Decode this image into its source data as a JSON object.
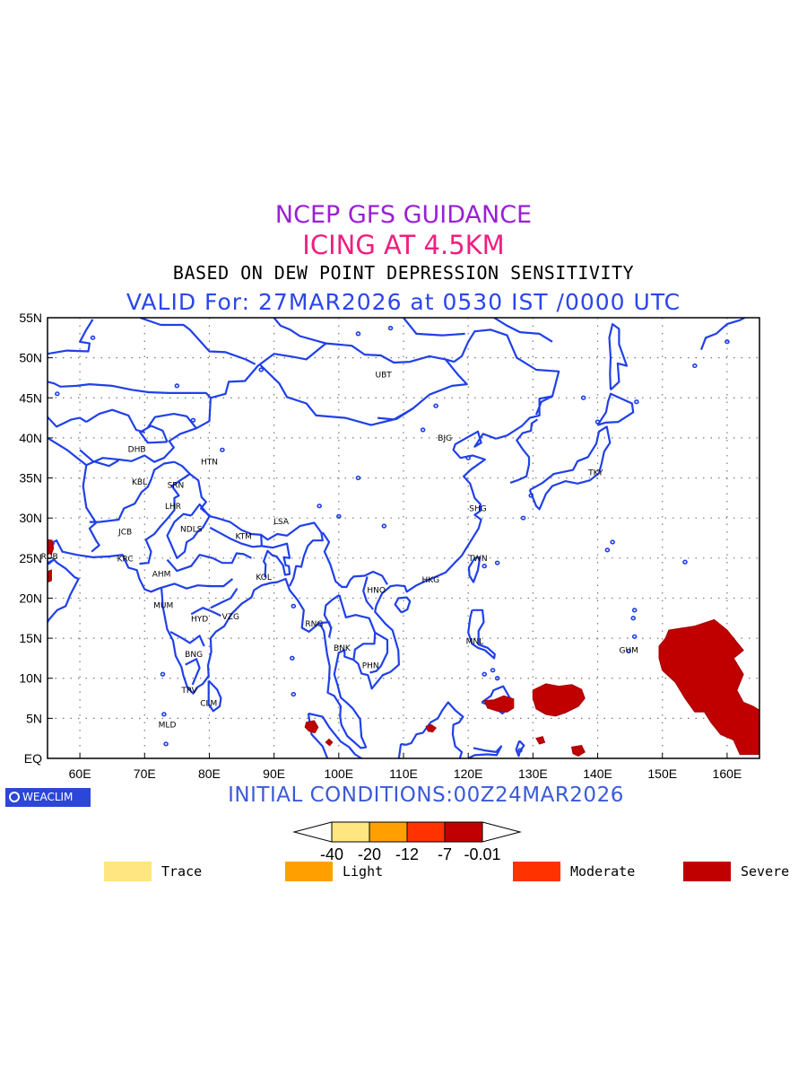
{
  "header": {
    "line1": "NCEP GFS GUIDANCE",
    "line2": "ICING AT 4.5KM",
    "line3": "BASED ON DEW POINT DEPRESSION SENSITIVITY",
    "line4": "VALID For: 27MAR2026 at 0530 IST /0000 UTC"
  },
  "colors": {
    "line1": "#9a1fd6",
    "line2": "#ee1f7f",
    "line3": "#000000",
    "line4": "#2b46e8",
    "coast": "#2040e8",
    "grid": "#777777",
    "initial": "#3a5ad8",
    "severe": "#c00000"
  },
  "map": {
    "lon_ticks": [
      "60E",
      "70E",
      "80E",
      "90E",
      "100E",
      "110E",
      "120E",
      "130E",
      "140E",
      "150E",
      "160E"
    ],
    "lat_ticks": [
      "EQ",
      "5N",
      "10N",
      "15N",
      "20N",
      "25N",
      "30N",
      "35N",
      "40N",
      "45N",
      "50N",
      "55N"
    ],
    "lon_range": [
      55,
      165
    ],
    "lat_range": [
      0,
      55
    ],
    "stations": [
      {
        "code": "UBT",
        "lon": 106.9,
        "lat": 47.9
      },
      {
        "code": "BJG",
        "lon": 116.4,
        "lat": 40.0
      },
      {
        "code": "DHB",
        "lon": 68.8,
        "lat": 38.6
      },
      {
        "code": "HTN",
        "lon": 80.0,
        "lat": 37.0
      },
      {
        "code": "KBL",
        "lon": 69.2,
        "lat": 34.5
      },
      {
        "code": "SRN",
        "lon": 74.8,
        "lat": 34.1
      },
      {
        "code": "TKY",
        "lon": 139.7,
        "lat": 35.7
      },
      {
        "code": "LHR",
        "lon": 74.4,
        "lat": 31.5
      },
      {
        "code": "SHG",
        "lon": 121.5,
        "lat": 31.2
      },
      {
        "code": "LSA",
        "lon": 91.1,
        "lat": 29.6
      },
      {
        "code": "JCB",
        "lon": 67.0,
        "lat": 28.3
      },
      {
        "code": "NDLS",
        "lon": 77.2,
        "lat": 28.6
      },
      {
        "code": "KTM",
        "lon": 85.3,
        "lat": 27.7
      },
      {
        "code": "TWN",
        "lon": 121.5,
        "lat": 25.0
      },
      {
        "code": "RUB",
        "lon": 55.3,
        "lat": 25.2
      },
      {
        "code": "KRC",
        "lon": 67.0,
        "lat": 24.9
      },
      {
        "code": "AHM",
        "lon": 72.6,
        "lat": 23.0
      },
      {
        "code": "KOL",
        "lon": 88.4,
        "lat": 22.6
      },
      {
        "code": "HKG",
        "lon": 114.2,
        "lat": 22.3
      },
      {
        "code": "HNO",
        "lon": 105.8,
        "lat": 21.0
      },
      {
        "code": "MUM",
        "lon": 72.9,
        "lat": 19.1
      },
      {
        "code": "HYD",
        "lon": 78.5,
        "lat": 17.4
      },
      {
        "code": "VZG",
        "lon": 83.3,
        "lat": 17.7
      },
      {
        "code": "RNG",
        "lon": 96.2,
        "lat": 16.8
      },
      {
        "code": "MNL",
        "lon": 121.0,
        "lat": 14.6
      },
      {
        "code": "GUM",
        "lon": 144.8,
        "lat": 13.5
      },
      {
        "code": "BNK",
        "lon": 100.5,
        "lat": 13.8
      },
      {
        "code": "BNG",
        "lon": 77.6,
        "lat": 13.0
      },
      {
        "code": "PHN",
        "lon": 104.9,
        "lat": 11.6
      },
      {
        "code": "TRV",
        "lon": 76.9,
        "lat": 8.5
      },
      {
        "code": "CLM",
        "lon": 79.9,
        "lat": 6.9
      },
      {
        "code": "MLD",
        "lon": 73.5,
        "lat": 4.2
      }
    ],
    "severe_regions": [
      {
        "name": "west-pacific",
        "pts": [
          [
            151,
            16
          ],
          [
            155,
            16.5
          ],
          [
            158,
            17.3
          ],
          [
            160,
            16
          ],
          [
            161.5,
            14.5
          ],
          [
            162.5,
            13.5
          ],
          [
            161,
            12.5
          ],
          [
            162.5,
            10.5
          ],
          [
            161.5,
            8.5
          ],
          [
            162.5,
            7
          ],
          [
            164,
            6.5
          ],
          [
            165,
            6
          ],
          [
            165,
            0.5
          ],
          [
            162,
            0.5
          ],
          [
            161,
            2.3
          ],
          [
            159,
            3
          ],
          [
            157.5,
            4.5
          ],
          [
            156.5,
            5.8
          ],
          [
            155,
            5.8
          ],
          [
            153.5,
            7.5
          ],
          [
            152,
            9.5
          ],
          [
            150,
            11
          ],
          [
            149.5,
            12.5
          ],
          [
            149.5,
            14
          ],
          [
            150.5,
            15
          ]
        ]
      },
      {
        "name": "caroline",
        "pts": [
          [
            130,
            8.5
          ],
          [
            132,
            9.3
          ],
          [
            134,
            9
          ],
          [
            136,
            9.2
          ],
          [
            137.5,
            8.6
          ],
          [
            138,
            7.5
          ],
          [
            137,
            6.5
          ],
          [
            135,
            5.7
          ],
          [
            133.5,
            5.3
          ],
          [
            132,
            5.5
          ],
          [
            130.5,
            6.2
          ],
          [
            130,
            7.5
          ]
        ]
      },
      {
        "name": "mindanao",
        "pts": [
          [
            122.5,
            7.2
          ],
          [
            124,
            7.3
          ],
          [
            125.5,
            7.8
          ],
          [
            127,
            7.4
          ],
          [
            127,
            6.3
          ],
          [
            126,
            5.8
          ],
          [
            124.5,
            5.9
          ],
          [
            123,
            6.3
          ]
        ]
      },
      {
        "name": "sumatra",
        "pts": [
          [
            95,
            4.5
          ],
          [
            96.2,
            4.7
          ],
          [
            96.8,
            3.9
          ],
          [
            96.3,
            3.2
          ],
          [
            95.4,
            3.4
          ],
          [
            94.8,
            3.9
          ]
        ]
      },
      {
        "name": "malaysia",
        "pts": [
          [
            98,
            2
          ],
          [
            98.5,
            2.4
          ],
          [
            99,
            2
          ],
          [
            98.6,
            1.6
          ]
        ]
      },
      {
        "name": "borneo",
        "pts": [
          [
            113.5,
            4
          ],
          [
            114.3,
            4.2
          ],
          [
            115,
            3.8
          ],
          [
            114.5,
            3.3
          ],
          [
            113.8,
            3.4
          ]
        ]
      },
      {
        "name": "png-north",
        "pts": [
          [
            130.5,
            2.5
          ],
          [
            131.5,
            2.7
          ],
          [
            131.8,
            2
          ],
          [
            131,
            1.8
          ]
        ]
      },
      {
        "name": "png-south",
        "pts": [
          [
            136,
            1.4
          ],
          [
            137.5,
            1.6
          ],
          [
            138,
            0.8
          ],
          [
            137,
            0.3
          ],
          [
            136.2,
            0.6
          ]
        ]
      },
      {
        "name": "arabia",
        "pts": [
          [
            55,
            27.3
          ],
          [
            55.7,
            27.2
          ],
          [
            55.9,
            26.2
          ],
          [
            55.6,
            25.5
          ],
          [
            55,
            25.6
          ]
        ]
      },
      {
        "name": "arabia-2",
        "pts": [
          [
            55,
            23.3
          ],
          [
            55.6,
            23.5
          ],
          [
            55.6,
            22.2
          ],
          [
            55,
            22
          ]
        ]
      }
    ]
  },
  "footer": {
    "logo": "WEACLIM",
    "initial_conditions": "INITIAL CONDITIONS:00Z24MAR2026"
  },
  "colorbar": {
    "labels": [
      "-40",
      "-20",
      "-12",
      "-7",
      "-0.01"
    ],
    "colors": [
      "#ffe680",
      "#ffa000",
      "#ff3200",
      "#c00000"
    ]
  },
  "legend": [
    {
      "label": "Trace",
      "color": "#ffe680"
    },
    {
      "label": "Light",
      "color": "#ffa000"
    },
    {
      "label": "Moderate",
      "color": "#ff3200"
    },
    {
      "label": "Severe",
      "color": "#c00000"
    }
  ]
}
